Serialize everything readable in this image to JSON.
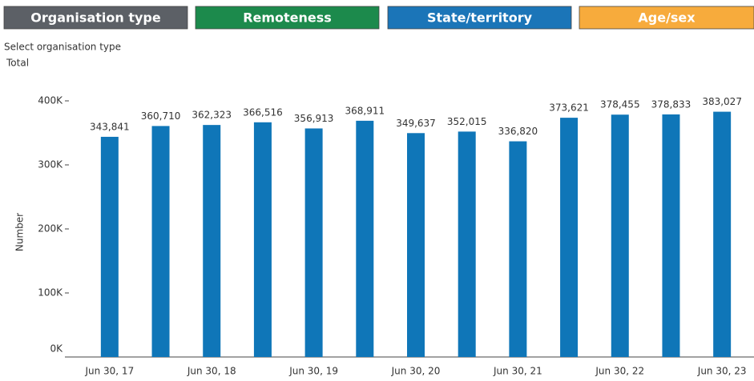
{
  "tabs": [
    "Organisation type",
    "Remoteness",
    "State/territory",
    "Age/sex"
  ],
  "tab_colors": [
    "#5c6066",
    "#1c8a4c",
    "#1b75b8",
    "#f7ab3c"
  ],
  "filter_label": "Select organisation type",
  "filter_value": "Total",
  "chart_data": {
    "type": "bar",
    "y_label": "Number",
    "categories": [
      "Jun 30, 17",
      null,
      "Jun 30, 18",
      null,
      "Jun 30, 19",
      null,
      "Jun 30, 20",
      null,
      "Jun 30, 21",
      null,
      "Jun 30, 22",
      null,
      "Jun 30, 23"
    ],
    "values": [
      343841,
      360710,
      362323,
      366516,
      356913,
      368911,
      349637,
      352015,
      336820,
      373621,
      378455,
      378833,
      383027
    ],
    "value_labels": [
      "343,841",
      "360,710",
      "362,323",
      "366,516",
      "356,913",
      "368,911",
      "349,637",
      "352,015",
      "336,820",
      "373,621",
      "378,455",
      "378,833",
      "383,027"
    ],
    "color": "#0f76b8",
    "ylim": [
      0,
      420000
    ],
    "yticks": [
      {
        "value": 0,
        "label": "0K"
      },
      {
        "value": 100000,
        "label": "100K"
      },
      {
        "value": 200000,
        "label": "200K"
      },
      {
        "value": 300000,
        "label": "300K"
      },
      {
        "value": 400000,
        "label": "400K"
      }
    ]
  }
}
